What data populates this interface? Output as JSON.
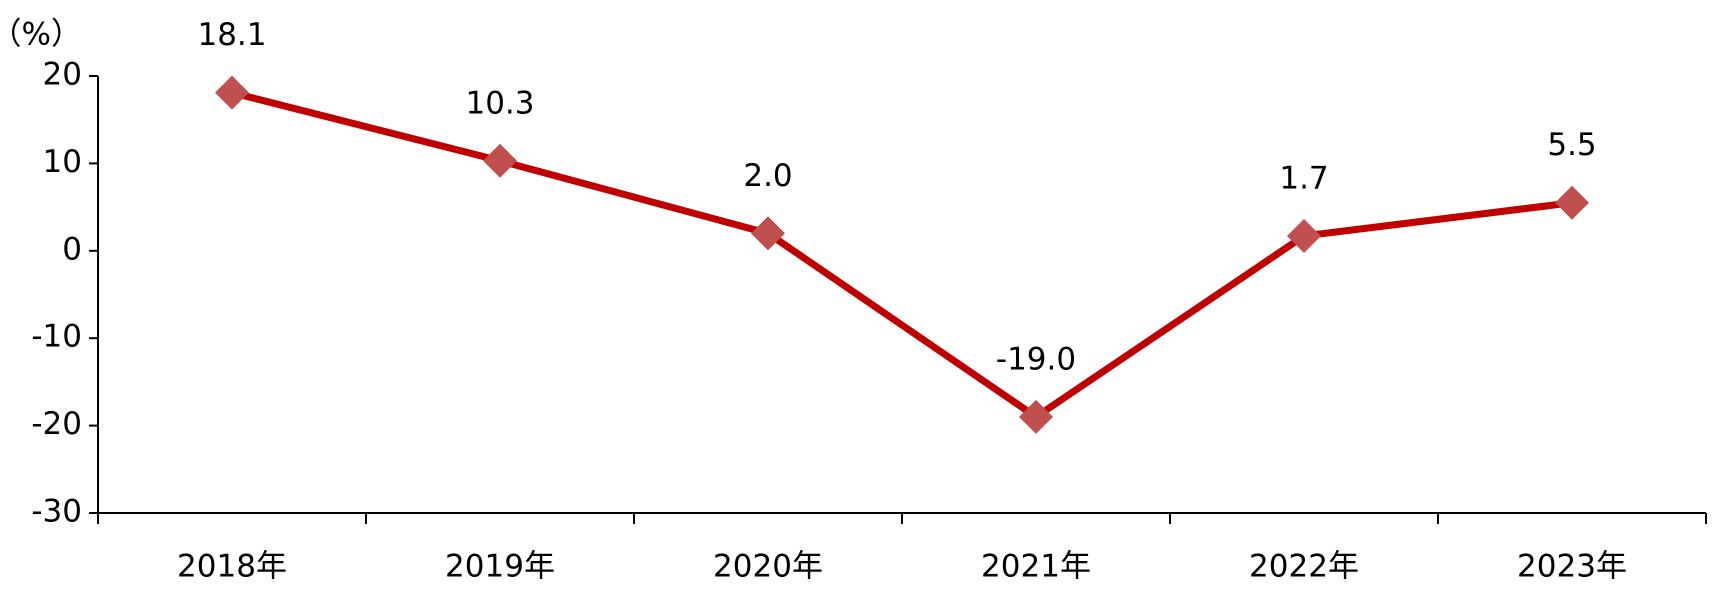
{
  "chart_data": {
    "type": "line",
    "y_unit_label": "（%）",
    "categories": [
      "2018年",
      "2019年",
      "2020年",
      "2021年",
      "2022年",
      "2023年"
    ],
    "series": [
      {
        "values": [
          18.1,
          10.3,
          2.0,
          -19.0,
          1.7,
          5.5
        ],
        "value_labels": [
          "18.1",
          "10.3",
          "2.0",
          "-19.0",
          "1.7",
          "5.5"
        ],
        "color": "#c00000",
        "marker_color": "#c0504d"
      }
    ],
    "ylim": [
      -30,
      20
    ],
    "yticks": [
      -30,
      -20,
      -10,
      0,
      10,
      20
    ],
    "grid": false
  }
}
